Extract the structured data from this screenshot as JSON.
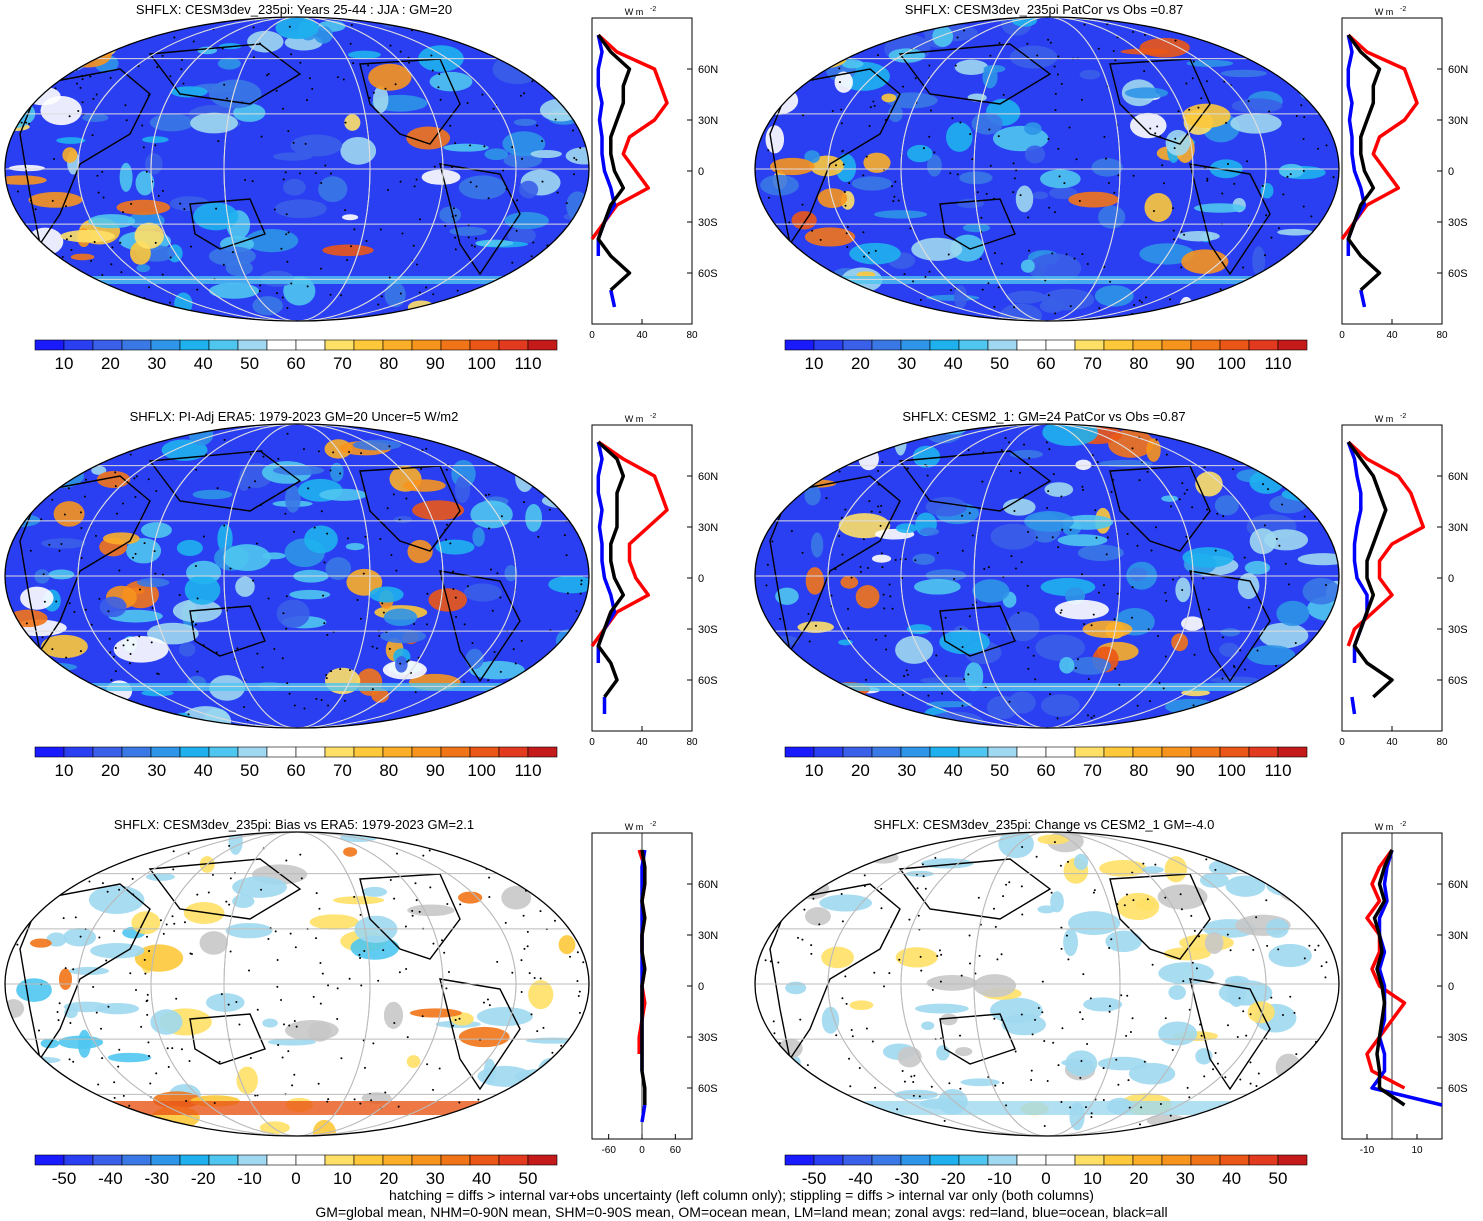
{
  "colors": {
    "seq": [
      "#1a1aff",
      "#2a3ff2",
      "#3a5fe8",
      "#3a78e6",
      "#2f95e8",
      "#1eb1ee",
      "#4fc6f0",
      "#9fd8f0",
      "#ffffff",
      "#ffffff",
      "#ffe066",
      "#fdc83a",
      "#fbae28",
      "#f7941d",
      "#f27418",
      "#ea5616",
      "#e23a1e",
      "#c41a1a"
    ],
    "div": [
      "#1a1aff",
      "#2a3ff2",
      "#3a5fe8",
      "#3a78e6",
      "#2f95e8",
      "#1eb1ee",
      "#4fc6f0",
      "#9fd8f0",
      "#ffffff",
      "#ffffff",
      "#ffe066",
      "#fdc83a",
      "#fbae28",
      "#f7941d",
      "#f27418",
      "#ea5616",
      "#e23a1e",
      "#c41a1a"
    ],
    "land_line": "#ff0000",
    "ocean_line": "#0000ff",
    "all_line": "#000000"
  },
  "panels": [
    {
      "id": "p1",
      "title": "SHFLX: CESM3dev_235pi: Years 25-44 : JJA : GM=20",
      "scale": "seq",
      "cb_labels": [
        "10",
        "20",
        "30",
        "40",
        "50",
        "60",
        "70",
        "80",
        "90",
        "100",
        "110"
      ],
      "zonal_unit": "W m",
      "zonal_sup": "-2",
      "zonal_xticks": [
        "0",
        "40",
        "80"
      ]
    },
    {
      "id": "p2",
      "title": "SHFLX: CESM3dev_235pi PatCor vs Obs =0.87",
      "scale": "seq",
      "cb_labels": [
        "10",
        "20",
        "30",
        "40",
        "50",
        "60",
        "70",
        "80",
        "90",
        "100",
        "110"
      ],
      "zonal_unit": "W m",
      "zonal_sup": "-2",
      "zonal_xticks": [
        "0",
        "40",
        "80"
      ]
    },
    {
      "id": "p3",
      "title": "SHFLX: PI-Adj ERA5: 1979-2023 GM=20 Uncer=5 W/m2",
      "scale": "seq",
      "cb_labels": [
        "10",
        "20",
        "30",
        "40",
        "50",
        "60",
        "70",
        "80",
        "90",
        "100",
        "110"
      ],
      "zonal_unit": "W m",
      "zonal_sup": "-2",
      "zonal_xticks": [
        "0",
        "40",
        "80"
      ]
    },
    {
      "id": "p4",
      "title": "SHFLX: CESM2_1: GM=24 PatCor vs Obs =0.87",
      "scale": "seq",
      "cb_labels": [
        "10",
        "20",
        "30",
        "40",
        "50",
        "60",
        "70",
        "80",
        "90",
        "100",
        "110"
      ],
      "zonal_unit": "W m",
      "zonal_sup": "-2",
      "zonal_xticks": [
        "0",
        "40",
        "80"
      ]
    },
    {
      "id": "p5",
      "title": "SHFLX: CESM3dev_235pi: Bias vs ERA5: 1979-2023 GM=2.1",
      "scale": "div",
      "cb_labels": [
        "-50",
        "-40",
        "-30",
        "-20",
        "-10",
        "0",
        "10",
        "20",
        "30",
        "40",
        "50"
      ],
      "zonal_unit": "W m",
      "zonal_sup": "-2",
      "zonal_xticks": [
        "-60",
        "0",
        "60"
      ]
    },
    {
      "id": "p6",
      "title": "SHFLX: CESM3dev_235pi: Change vs CESM2_1 GM=-4.0",
      "scale": "div",
      "cb_labels": [
        "-50",
        "-40",
        "-30",
        "-20",
        "-10",
        "0",
        "10",
        "20",
        "30",
        "40",
        "50"
      ],
      "zonal_unit": "W m",
      "zonal_sup": "-2",
      "zonal_xticks": [
        "-10",
        "10"
      ]
    }
  ],
  "lat_labels": [
    "60N",
    "30N",
    "0",
    "30S",
    "60S"
  ],
  "chart_data": [
    {
      "type": "line",
      "title": "SHFLX: CESM3dev_235pi: Years 25-44 : JJA : GM=20",
      "ylabel": "",
      "xlabel": "W m-2",
      "xlim": [
        0,
        80
      ],
      "ylim": [
        -90,
        90
      ],
      "lat": [
        80,
        70,
        60,
        50,
        40,
        30,
        20,
        10,
        0,
        -10,
        -20,
        -30,
        -40,
        -50,
        -60,
        -70,
        -80
      ],
      "series": [
        {
          "name": "land",
          "values": [
            5,
            20,
            50,
            55,
            60,
            50,
            30,
            25,
            35,
            45,
            20,
            10,
            0,
            null,
            20,
            null,
            null
          ]
        },
        {
          "name": "ocean",
          "values": [
            5,
            8,
            5,
            5,
            8,
            6,
            8,
            8,
            10,
            15,
            18,
            10,
            5,
            5,
            null,
            15,
            18
          ]
        },
        {
          "name": "all",
          "values": [
            5,
            15,
            30,
            25,
            25,
            20,
            15,
            15,
            18,
            25,
            15,
            10,
            5,
            15,
            30,
            15,
            null
          ]
        }
      ]
    },
    {
      "type": "line",
      "title": "SHFLX: CESM3dev_235pi PatCor vs Obs =0.87",
      "xlabel": "W m-2",
      "xlim": [
        0,
        80
      ],
      "ylim": [
        -90,
        90
      ],
      "lat": [
        80,
        70,
        60,
        50,
        40,
        30,
        20,
        10,
        0,
        -10,
        -20,
        -30,
        -40,
        -50,
        -60,
        -70,
        -80
      ],
      "series": [
        {
          "name": "land",
          "values": [
            5,
            20,
            50,
            55,
            60,
            50,
            30,
            25,
            35,
            45,
            20,
            10,
            0,
            null,
            20,
            null,
            null
          ]
        },
        {
          "name": "ocean",
          "values": [
            5,
            8,
            5,
            5,
            8,
            6,
            8,
            8,
            10,
            15,
            18,
            10,
            5,
            5,
            null,
            15,
            18
          ]
        },
        {
          "name": "all",
          "values": [
            5,
            15,
            30,
            25,
            25,
            20,
            15,
            15,
            18,
            25,
            15,
            10,
            5,
            15,
            30,
            15,
            null
          ]
        }
      ]
    },
    {
      "type": "line",
      "title": "SHFLX: PI-Adj ERA5: 1979-2023 GM=20 Uncer=5 W/m2",
      "xlabel": "W m-2",
      "xlim": [
        0,
        80
      ],
      "ylim": [
        -90,
        90
      ],
      "lat": [
        80,
        70,
        60,
        50,
        40,
        30,
        20,
        10,
        0,
        -10,
        -20,
        -30,
        -40,
        -50,
        -60,
        -70,
        -80
      ],
      "series": [
        {
          "name": "land",
          "values": [
            5,
            25,
            50,
            55,
            60,
            45,
            30,
            30,
            35,
            45,
            20,
            10,
            0,
            null,
            15,
            null,
            null
          ]
        },
        {
          "name": "ocean",
          "values": [
            5,
            8,
            5,
            5,
            8,
            6,
            8,
            8,
            10,
            15,
            18,
            10,
            5,
            5,
            null,
            10,
            10
          ]
        },
        {
          "name": "all",
          "values": [
            5,
            20,
            25,
            20,
            20,
            20,
            15,
            15,
            18,
            25,
            15,
            10,
            5,
            15,
            20,
            10,
            null
          ]
        }
      ]
    },
    {
      "type": "line",
      "title": "SHFLX: CESM2_1: GM=24 PatCor vs Obs =0.87",
      "xlabel": "W m-2",
      "xlim": [
        0,
        80
      ],
      "ylim": [
        -90,
        90
      ],
      "lat": [
        80,
        70,
        60,
        50,
        40,
        30,
        20,
        10,
        0,
        -10,
        -20,
        -30,
        -40,
        -50,
        -60,
        -70,
        -80
      ],
      "series": [
        {
          "name": "land",
          "values": [
            5,
            20,
            45,
            55,
            60,
            65,
            40,
            30,
            30,
            40,
            25,
            10,
            5,
            null,
            10,
            null,
            null
          ]
        },
        {
          "name": "ocean",
          "values": [
            5,
            10,
            12,
            15,
            15,
            12,
            10,
            10,
            12,
            20,
            20,
            15,
            10,
            10,
            null,
            8,
            10
          ]
        },
        {
          "name": "all",
          "values": [
            5,
            15,
            25,
            30,
            35,
            30,
            25,
            20,
            20,
            25,
            20,
            15,
            10,
            20,
            40,
            25,
            null
          ]
        }
      ]
    },
    {
      "type": "line",
      "title": "SHFLX: CESM3dev_235pi: Bias vs ERA5: 1979-2023 GM=2.1",
      "xlabel": "W m-2",
      "xlim": [
        -90,
        90
      ],
      "ylim": [
        -90,
        90
      ],
      "lat": [
        80,
        70,
        60,
        50,
        40,
        30,
        20,
        10,
        0,
        -10,
        -20,
        -30,
        -40,
        -50,
        -60,
        -70,
        -80
      ],
      "series": [
        {
          "name": "land",
          "values": [
            -5,
            5,
            5,
            0,
            5,
            0,
            0,
            5,
            0,
            5,
            0,
            -5,
            -5,
            null,
            5,
            null,
            null
          ]
        },
        {
          "name": "ocean",
          "values": [
            5,
            0,
            0,
            0,
            0,
            0,
            0,
            0,
            0,
            0,
            0,
            0,
            0,
            0,
            null,
            5,
            0
          ]
        },
        {
          "name": "all",
          "values": [
            0,
            5,
            5,
            0,
            5,
            0,
            0,
            5,
            0,
            0,
            0,
            0,
            0,
            0,
            5,
            5,
            null
          ]
        }
      ]
    },
    {
      "type": "line",
      "title": "SHFLX: CESM3dev_235pi: Change vs CESM2_1 GM=-4.0",
      "xlabel": "W m-2",
      "xlim": [
        -20,
        20
      ],
      "ylim": [
        -90,
        90
      ],
      "lat": [
        80,
        70,
        60,
        50,
        40,
        30,
        20,
        10,
        0,
        -10,
        -20,
        -30,
        -40,
        -50,
        -60,
        -70,
        -80
      ],
      "series": [
        {
          "name": "land",
          "values": [
            0,
            -5,
            -8,
            -5,
            -10,
            -5,
            -5,
            -8,
            -5,
            5,
            0,
            -5,
            -10,
            -8,
            5,
            null,
            null
          ]
        },
        {
          "name": "ocean",
          "values": [
            0,
            -2,
            -3,
            -2,
            -5,
            -5,
            -3,
            -5,
            -3,
            -3,
            -3,
            -5,
            -3,
            -3,
            -8,
            20,
            null
          ]
        },
        {
          "name": "all",
          "values": [
            0,
            -3,
            -5,
            -3,
            -7,
            -5,
            -4,
            -6,
            -4,
            -3,
            -4,
            -5,
            -6,
            -5,
            -5,
            5,
            null
          ]
        }
      ]
    }
  ],
  "footer": {
    "line1": "hatching = diffs > internal var+obs uncertainty (left column only); stippling = diffs > internal var only (both columns)",
    "line2": "GM=global mean, NHM=0-90N mean, SHM=0-90S mean, OM=ocean mean, LM=land mean; zonal avgs: red=land, blue=ocean, black=all"
  }
}
